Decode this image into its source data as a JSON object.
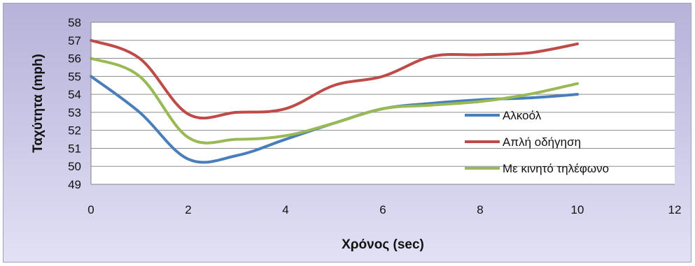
{
  "chart_data": {
    "type": "line",
    "title": "",
    "xlabel": "Χρόνος (sec)",
    "ylabel": "Ταχύτητα (mph)",
    "xlim": [
      0,
      12
    ],
    "ylim": [
      49,
      58
    ],
    "x_ticks": [
      0,
      2,
      4,
      6,
      8,
      10,
      12
    ],
    "y_ticks": [
      49,
      50,
      51,
      52,
      53,
      54,
      55,
      56,
      57,
      58
    ],
    "grid": "horizontal",
    "legend_position": "right-inside",
    "series": [
      {
        "name": "Αλκοόλ",
        "color": "#4a7ebb",
        "x": [
          0,
          1,
          2,
          3,
          4,
          5,
          6,
          7,
          8,
          9,
          10
        ],
        "values": [
          55.0,
          53.0,
          50.4,
          50.6,
          51.5,
          52.4,
          53.2,
          53.5,
          53.7,
          53.8,
          54.0
        ]
      },
      {
        "name": "Απλή οδήγηση",
        "color": "#be4b48",
        "x": [
          0,
          1,
          2,
          3,
          4,
          5,
          6,
          7,
          8,
          9,
          10
        ],
        "values": [
          57.0,
          56.0,
          52.9,
          53.0,
          53.2,
          54.5,
          55.0,
          56.1,
          56.2,
          56.3,
          56.8
        ]
      },
      {
        "name": "Με κινητό τηλέφωνο",
        "color": "#98b954",
        "x": [
          0,
          1,
          2,
          3,
          4,
          5,
          6,
          7,
          8,
          9,
          10
        ],
        "values": [
          56.0,
          55.0,
          51.6,
          51.5,
          51.7,
          52.4,
          53.2,
          53.4,
          53.6,
          54.0,
          54.6
        ]
      }
    ]
  }
}
